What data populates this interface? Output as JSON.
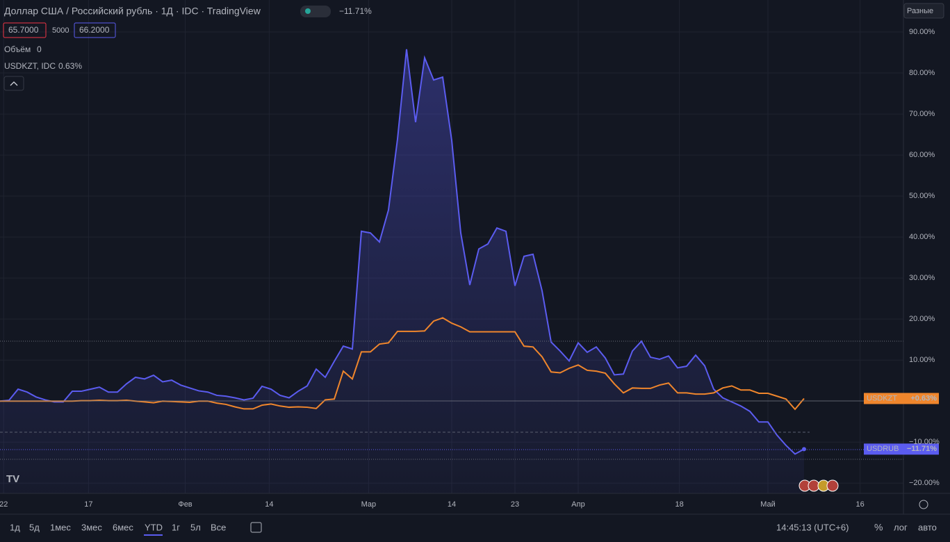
{
  "chart_data": {
    "type": "line",
    "x": [
      0,
      1,
      2,
      3,
      4,
      5,
      6,
      7,
      8,
      9,
      10,
      11,
      12,
      13,
      14,
      15,
      16,
      17,
      18,
      19,
      20,
      21,
      22,
      23,
      24,
      25,
      26,
      27,
      28,
      29,
      30,
      31,
      32,
      33,
      34,
      35,
      36,
      37,
      38,
      39,
      40,
      41,
      42,
      43,
      44,
      45,
      46,
      47,
      48,
      49,
      50,
      51,
      52,
      53,
      54,
      55,
      56,
      57,
      58,
      59,
      60,
      61,
      62,
      63,
      64,
      65,
      66,
      67,
      68,
      69,
      70,
      71,
      72,
      73,
      74,
      75,
      76,
      77,
      78,
      79,
      80,
      81,
      82,
      83,
      84,
      85,
      86,
      87,
      88,
      89
    ],
    "series": [
      {
        "name": "USDRUB",
        "color": "#5b5cf0",
        "values": [
          0,
          0.2,
          2.9,
          2.2,
          1.0,
          0.3,
          -0.2,
          -0.2,
          2.4,
          2.4,
          2.9,
          3.4,
          2.2,
          2.2,
          4.2,
          5.8,
          5.4,
          6.3,
          4.7,
          5.1,
          3.9,
          3.2,
          2.5,
          2.2,
          1.4,
          1.2,
          0.8,
          0.3,
          0.7,
          3.6,
          2.9,
          1.4,
          0.8,
          2.4,
          3.7,
          7.8,
          5.8,
          9.7,
          13.4,
          12.7,
          41.4,
          41.0,
          38.8,
          46.6,
          63.9,
          85.8,
          68.0,
          83.7,
          78.3,
          79.0,
          63.6,
          41.0,
          28.3,
          37.1,
          38.3,
          42.2,
          41.4,
          28.1,
          35.3,
          35.8,
          26.9,
          14.4,
          12.2,
          9.8,
          14.2,
          11.9,
          13.2,
          10.5,
          6.4,
          6.6,
          12.2,
          14.6,
          10.7,
          10.2,
          11.0,
          8.1,
          8.5,
          11.2,
          8.6,
          2.9,
          0.8,
          -0.2,
          -1.2,
          -2.5,
          -5.1,
          -5.1,
          -8.3,
          -10.8,
          -12.9,
          -11.71
        ]
      },
      {
        "name": "USDKZT",
        "color": "#f0862c",
        "values": [
          0,
          0,
          0,
          0,
          0,
          0,
          0,
          0,
          0,
          0.1,
          0.1,
          0.2,
          0.1,
          0.1,
          0.2,
          0,
          -0.2,
          -0.4,
          0,
          -0.1,
          -0.2,
          -0.3,
          0,
          0,
          -0.5,
          -0.8,
          -1.4,
          -1.9,
          -1.9,
          -1.0,
          -0.7,
          -1.2,
          -1.5,
          -1.4,
          -1.5,
          -1.8,
          0.3,
          0.5,
          7.3,
          5.4,
          12.0,
          12.0,
          13.9,
          14.2,
          17.0,
          17.0,
          17.0,
          17.1,
          19.5,
          20.3,
          19.0,
          18.1,
          16.9,
          16.9,
          16.9,
          16.9,
          16.9,
          16.9,
          13.4,
          13.2,
          10.8,
          7.1,
          6.9,
          8.0,
          8.8,
          7.5,
          7.3,
          6.8,
          4.2,
          2.0,
          3.2,
          3.1,
          3.1,
          3.9,
          4.4,
          2.0,
          2.0,
          1.7,
          1.7,
          2.0,
          3.2,
          3.7,
          2.7,
          2.7,
          1.9,
          1.9,
          1.2,
          0.5,
          -2.0,
          0.63
        ]
      }
    ],
    "xlim": [
      0,
      100
    ],
    "xticks": [
      {
        "value": 0.4,
        "label": "22"
      },
      {
        "value": 9.8,
        "label": "17"
      },
      {
        "value": 20.5,
        "label": "Фев"
      },
      {
        "value": 29.8,
        "label": "14"
      },
      {
        "value": 40.8,
        "label": "Мар"
      },
      {
        "value": 50,
        "label": "14"
      },
      {
        "value": 57,
        "label": "23"
      },
      {
        "value": 64,
        "label": "Апр"
      },
      {
        "value": 75.2,
        "label": "18"
      },
      {
        "value": 85,
        "label": "Май"
      },
      {
        "value": 95.2,
        "label": "16"
      }
    ],
    "ylim": [
      -22.5,
      97.8
    ],
    "yticks": [
      {
        "value": -20,
        "label": "−20.00%"
      },
      {
        "value": -10,
        "label": "−10.00%"
      },
      {
        "value": 10,
        "label": "10.00%"
      },
      {
        "value": 20,
        "label": "20.00%"
      },
      {
        "value": 30,
        "label": "30.00%"
      },
      {
        "value": 40,
        "label": "40.00%"
      },
      {
        "value": 50,
        "label": "50.00%"
      },
      {
        "value": 60,
        "label": "60.00%"
      },
      {
        "value": 70,
        "label": "70.00%"
      },
      {
        "value": 80,
        "label": "80.00%"
      },
      {
        "value": 90,
        "label": "90.00%"
      }
    ],
    "grid": true
  },
  "ui": {
    "title": "Доллар США / Российский рубль · 1Д · IDC · TradingView",
    "change": "−11.71%",
    "bid": "65.7000",
    "spread": "5000",
    "ask": "66.2000",
    "volume_label": "Объём",
    "volume_value": "0",
    "compare_label": "USDKZT, IDC",
    "compare_value": "0.63%",
    "scale_mode": "Разные",
    "tag_kzt_name": "USDKZT",
    "tag_kzt_value": "+0.63%",
    "tag_rub_name": "USDRUB",
    "tag_rub_value": "−11.71%",
    "ranges": [
      "1д",
      "5д",
      "1мес",
      "3мес",
      "6мес",
      "YTD",
      "1г",
      "5л",
      "Все"
    ],
    "clock": "14:45:13 (UTC+6)",
    "percent": "%",
    "log": "лог",
    "auto": "авто"
  }
}
